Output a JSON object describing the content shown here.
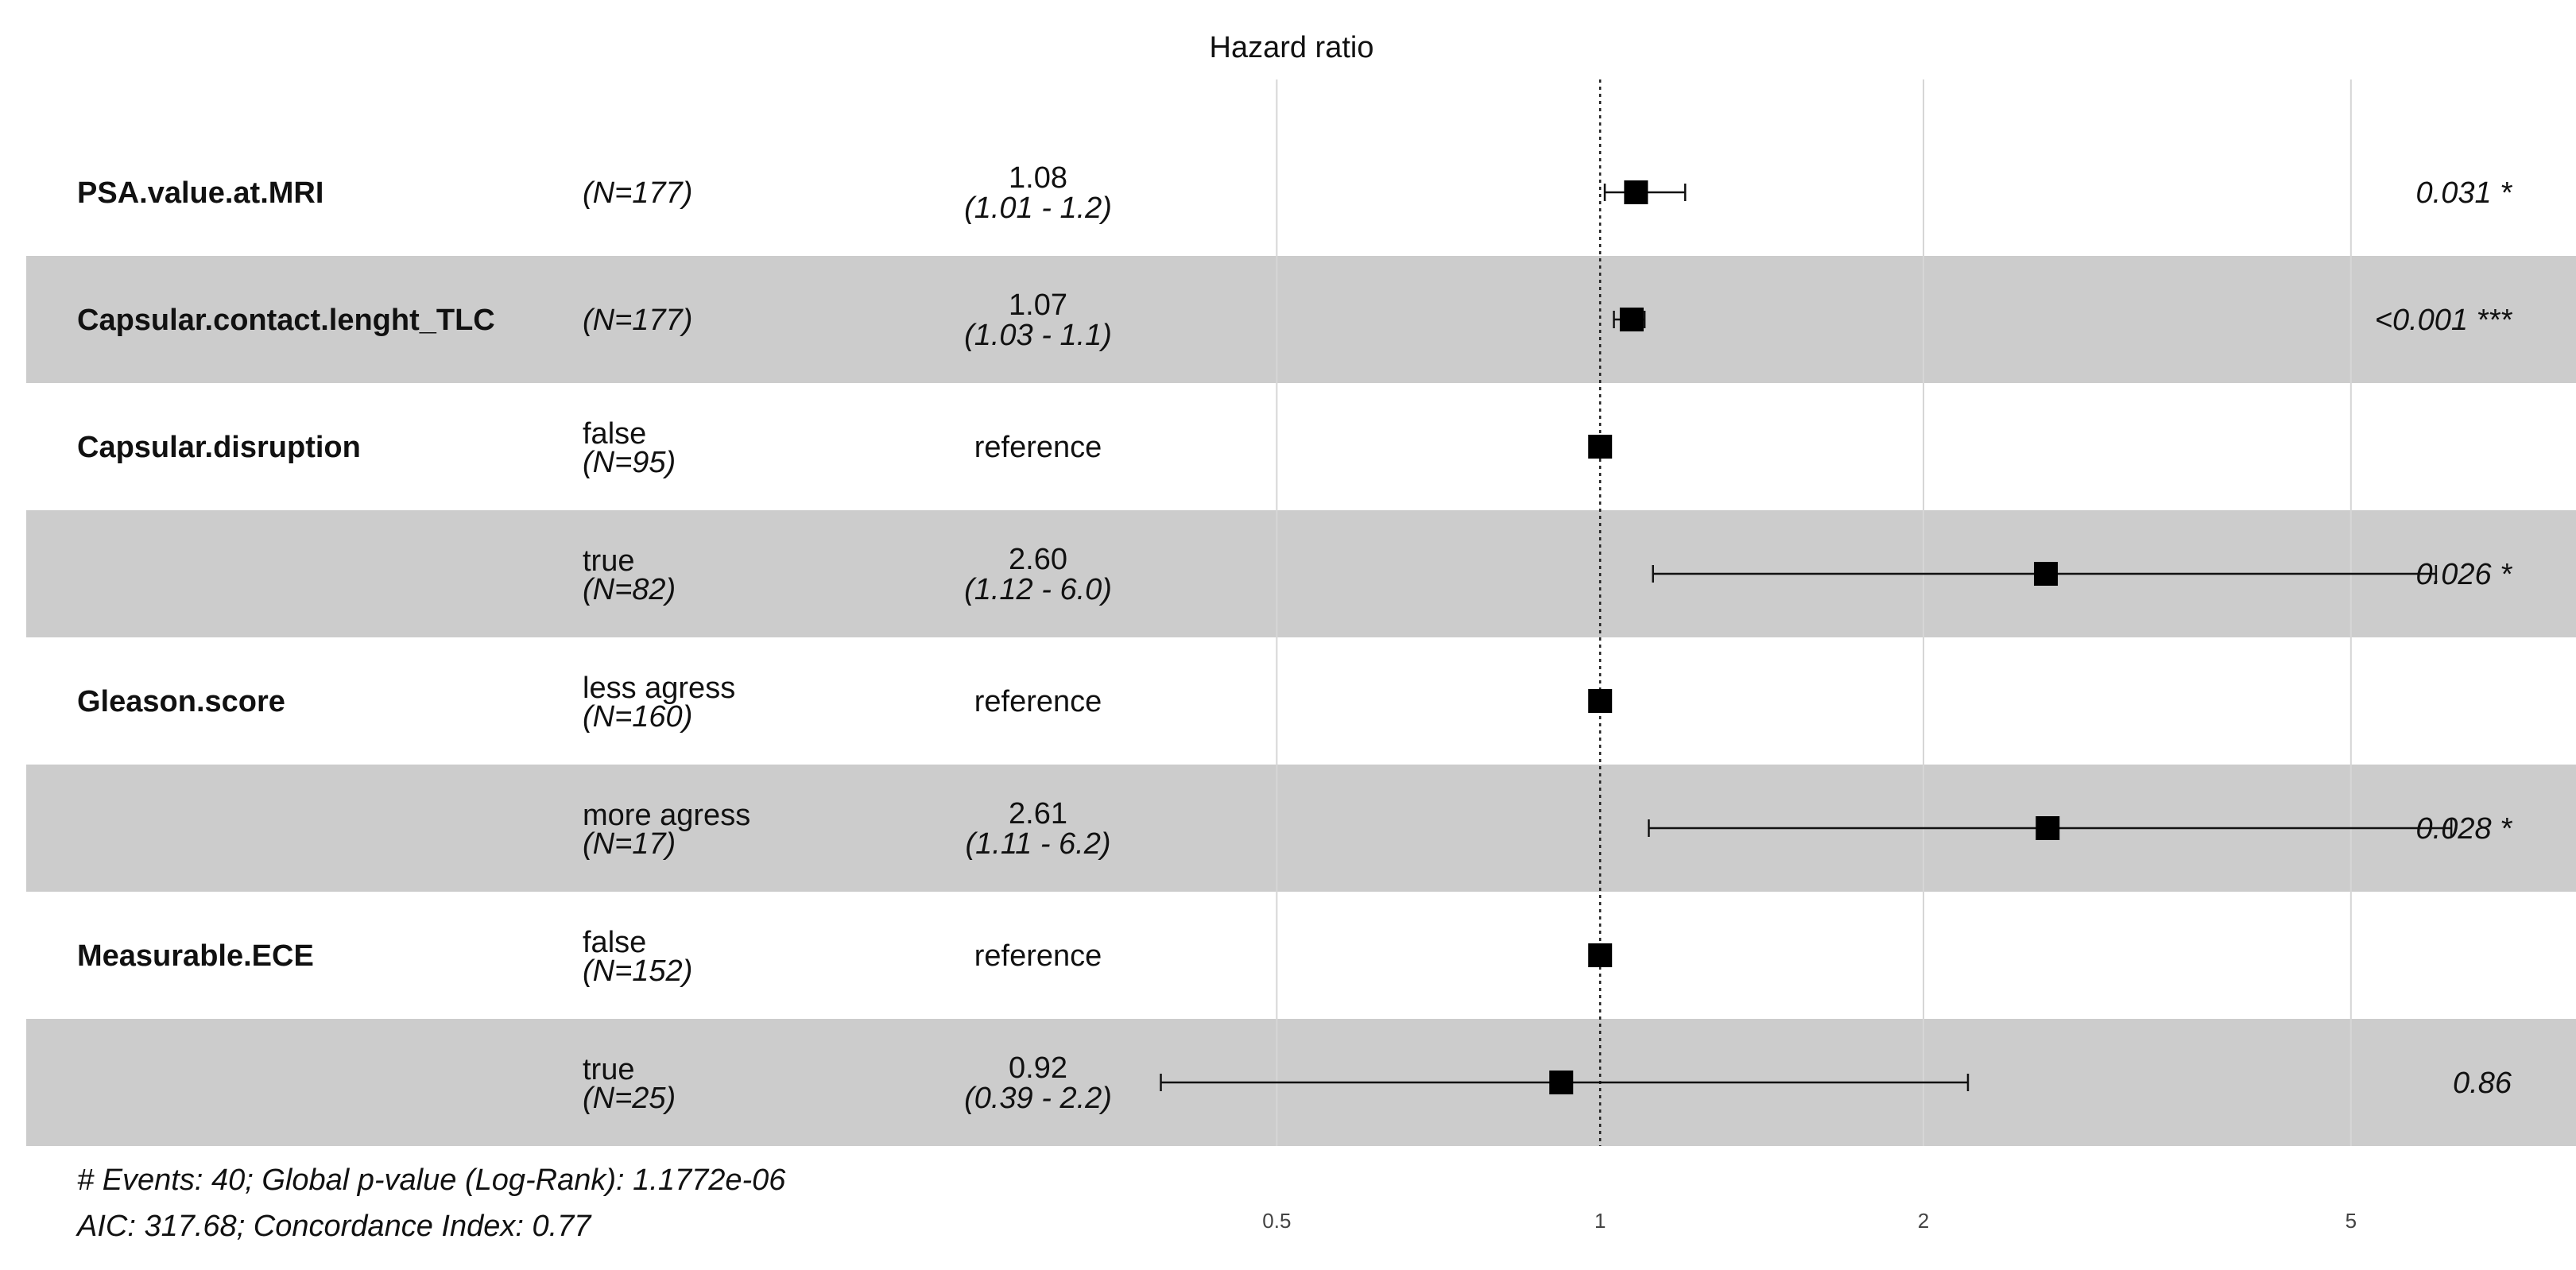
{
  "chart_data": {
    "type": "forest",
    "title": "Hazard ratio",
    "x_scale": "log",
    "xlim": [
      0.34,
      8.1
    ],
    "x_ticks": [
      "0.5",
      "1",
      "2",
      "5"
    ],
    "x_tick_values": [
      0.5,
      1,
      2,
      5
    ],
    "reference_line": 1,
    "stripe_color": "#cccccc",
    "rows": [
      {
        "variable": "PSA.value.at.MRI",
        "level": "",
        "n": "(N=177)",
        "hr_text": "1.08",
        "ci_text": "(1.01 - 1.2)",
        "p_text": "0.031 *",
        "hr": 1.08,
        "lo": 1.01,
        "hi": 1.2,
        "shaded": false
      },
      {
        "variable": "Capsular.contact.lenght_TLC",
        "level": "",
        "n": "(N=177)",
        "hr_text": "1.07",
        "ci_text": "(1.03 - 1.1)",
        "p_text": "<0.001 ***",
        "hr": 1.07,
        "lo": 1.03,
        "hi": 1.1,
        "shaded": true
      },
      {
        "variable": "Capsular.disruption",
        "level": "false",
        "n": "(N=95)",
        "hr_text": "reference",
        "ci_text": "",
        "p_text": "",
        "hr": 1,
        "lo": null,
        "hi": null,
        "shaded": false
      },
      {
        "variable": "",
        "level": "true",
        "n": "(N=82)",
        "hr_text": "2.60",
        "ci_text": "(1.12 - 6.0)",
        "p_text": "0.026 *",
        "hr": 2.6,
        "lo": 1.12,
        "hi": 6.0,
        "shaded": true
      },
      {
        "variable": "Gleason.score",
        "level": "less agress",
        "n": "(N=160)",
        "hr_text": "reference",
        "ci_text": "",
        "p_text": "",
        "hr": 1,
        "lo": null,
        "hi": null,
        "shaded": false
      },
      {
        "variable": "",
        "level": "more agress",
        "n": "(N=17)",
        "hr_text": "2.61",
        "ci_text": "(1.11 - 6.2)",
        "p_text": "0.028 *",
        "hr": 2.61,
        "lo": 1.11,
        "hi": 6.2,
        "shaded": true
      },
      {
        "variable": "Measurable.ECE",
        "level": "false",
        "n": "(N=152)",
        "hr_text": "reference",
        "ci_text": "",
        "p_text": "",
        "hr": 1,
        "lo": null,
        "hi": null,
        "shaded": false
      },
      {
        "variable": "",
        "level": "true",
        "n": "(N=25)",
        "hr_text": "0.92",
        "ci_text": "(0.39 - 2.2)",
        "p_text": "0.86",
        "hr": 0.92,
        "lo": 0.39,
        "hi": 2.2,
        "shaded": true
      }
    ],
    "footer": [
      "# Events: 40; Global p-value (Log-Rank): 1.1772e-06",
      "AIC: 317.68; Concordance Index: 0.77"
    ]
  }
}
